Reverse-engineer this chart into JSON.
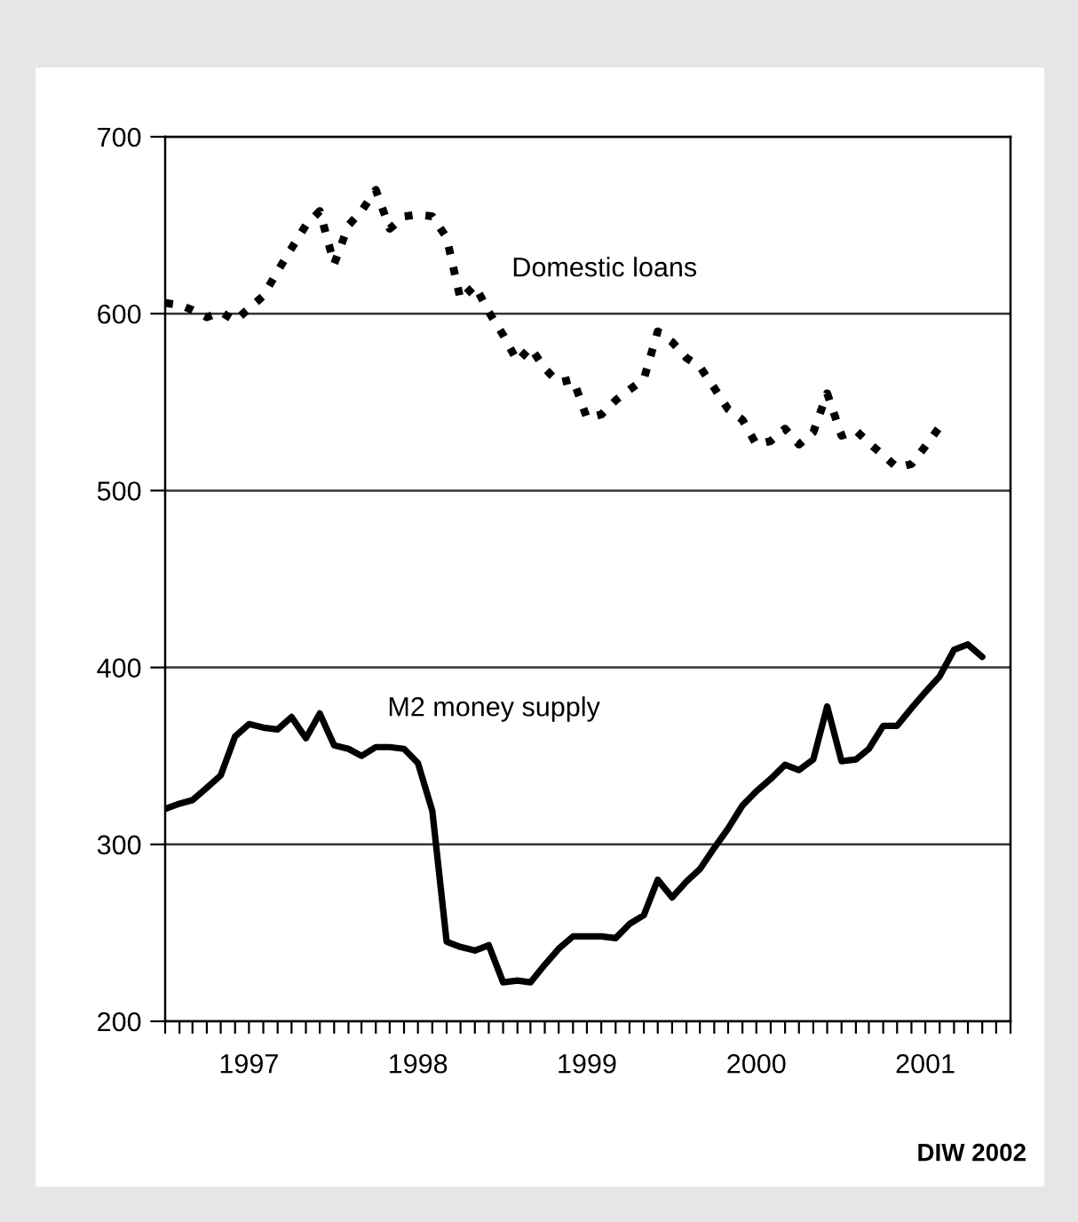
{
  "chart_data": {
    "type": "line",
    "x": [
      "1997-01",
      "1997-02",
      "1997-03",
      "1997-04",
      "1997-05",
      "1997-06",
      "1997-07",
      "1997-08",
      "1997-09",
      "1997-10",
      "1997-11",
      "1997-12",
      "1998-01",
      "1998-02",
      "1998-03",
      "1998-04",
      "1998-05",
      "1998-06",
      "1998-07",
      "1998-08",
      "1998-09",
      "1998-10",
      "1998-11",
      "1998-12",
      "1999-01",
      "1999-02",
      "1999-03",
      "1999-04",
      "1999-05",
      "1999-06",
      "1999-07",
      "1999-08",
      "1999-09",
      "1999-10",
      "1999-11",
      "1999-12",
      "2000-01",
      "2000-02",
      "2000-03",
      "2000-04",
      "2000-05",
      "2000-06",
      "2000-07",
      "2000-08",
      "2000-09",
      "2000-10",
      "2000-11",
      "2000-12",
      "2001-01",
      "2001-02",
      "2001-03",
      "2001-04",
      "2001-05",
      "2001-06",
      "2001-07",
      "2001-08",
      "2001-09",
      "2001-10",
      "2001-11"
    ],
    "series": [
      {
        "name": "Domestic loans",
        "color": "#000000",
        "line_style": "dotted",
        "values": [
          606,
          605,
          602,
          598,
          601,
          596,
          603,
          610,
          624,
          637,
          650,
          658,
          628,
          650,
          658,
          670,
          648,
          655,
          656,
          655,
          643,
          608,
          616,
          601,
          588,
          573,
          581,
          569,
          561,
          563,
          541,
          543,
          551,
          557,
          563,
          590,
          584,
          575,
          570,
          558,
          546,
          540,
          526,
          528,
          535,
          526,
          533,
          555,
          531,
          534,
          527,
          520,
          513,
          515,
          525,
          536,
          null,
          null,
          null
        ]
      },
      {
        "name": "M2 money supply",
        "color": "#000000",
        "line_style": "solid",
        "values": [
          320,
          323,
          325,
          332,
          339,
          361,
          368,
          366,
          365,
          372,
          360,
          374,
          356,
          354,
          350,
          355,
          355,
          354,
          346,
          319,
          245,
          242,
          240,
          243,
          222,
          223,
          222,
          232,
          241,
          248,
          248,
          248,
          247,
          255,
          260,
          280,
          270,
          279,
          286,
          298,
          309,
          322,
          330,
          337,
          345,
          342,
          348,
          378,
          347,
          348,
          354,
          367,
          367,
          377,
          386,
          395,
          410,
          413,
          406
        ]
      }
    ],
    "xlim": [
      "1997-01",
      "2002-01"
    ],
    "xticks": [
      {
        "value": "1997-01",
        "label": null
      },
      {
        "value": "1997-02",
        "label": null
      },
      {
        "value": "1997-03",
        "label": null
      },
      {
        "value": "1997-04",
        "label": null
      },
      {
        "value": "1997-05",
        "label": null
      },
      {
        "value": "1997-06",
        "label": null
      },
      {
        "value": "1997-07",
        "label": "1997"
      },
      {
        "value": "1997-08",
        "label": null
      },
      {
        "value": "1997-09",
        "label": null
      },
      {
        "value": "1997-10",
        "label": null
      },
      {
        "value": "1997-11",
        "label": null
      },
      {
        "value": "1997-12",
        "label": null
      },
      {
        "value": "1998-01",
        "label": null
      },
      {
        "value": "1998-02",
        "label": null
      },
      {
        "value": "1998-03",
        "label": null
      },
      {
        "value": "1998-04",
        "label": null
      },
      {
        "value": "1998-05",
        "label": null
      },
      {
        "value": "1998-06",
        "label": null
      },
      {
        "value": "1998-07",
        "label": "1998"
      },
      {
        "value": "1998-08",
        "label": null
      },
      {
        "value": "1998-09",
        "label": null
      },
      {
        "value": "1998-10",
        "label": null
      },
      {
        "value": "1998-11",
        "label": null
      },
      {
        "value": "1998-12",
        "label": null
      },
      {
        "value": "1999-01",
        "label": null
      },
      {
        "value": "1999-02",
        "label": null
      },
      {
        "value": "1999-03",
        "label": null
      },
      {
        "value": "1999-04",
        "label": null
      },
      {
        "value": "1999-05",
        "label": null
      },
      {
        "value": "1999-06",
        "label": null
      },
      {
        "value": "1999-07",
        "label": "1999"
      },
      {
        "value": "1999-08",
        "label": null
      },
      {
        "value": "1999-09",
        "label": null
      },
      {
        "value": "1999-10",
        "label": null
      },
      {
        "value": "1999-11",
        "label": null
      },
      {
        "value": "1999-12",
        "label": null
      },
      {
        "value": "2000-01",
        "label": null
      },
      {
        "value": "2000-02",
        "label": null
      },
      {
        "value": "2000-03",
        "label": null
      },
      {
        "value": "2000-04",
        "label": null
      },
      {
        "value": "2000-05",
        "label": null
      },
      {
        "value": "2000-06",
        "label": null
      },
      {
        "value": "2000-07",
        "label": "2000"
      },
      {
        "value": "2000-08",
        "label": null
      },
      {
        "value": "2000-09",
        "label": null
      },
      {
        "value": "2000-10",
        "label": null
      },
      {
        "value": "2000-11",
        "label": null
      },
      {
        "value": "2000-12",
        "label": null
      },
      {
        "value": "2001-01",
        "label": null
      },
      {
        "value": "2001-02",
        "label": null
      },
      {
        "value": "2001-03",
        "label": null
      },
      {
        "value": "2001-04",
        "label": null
      },
      {
        "value": "2001-05",
        "label": null
      },
      {
        "value": "2001-06",
        "label": null
      },
      {
        "value": "2001-07",
        "label": "2001"
      },
      {
        "value": "2001-08",
        "label": null
      },
      {
        "value": "2001-09",
        "label": null
      },
      {
        "value": "2001-10",
        "label": null
      },
      {
        "value": "2001-11",
        "label": null
      },
      {
        "value": "2001-12",
        "label": null
      },
      {
        "value": "2002-01",
        "label": null
      }
    ],
    "ylim": [
      200,
      700
    ],
    "yticks": [
      200,
      300,
      400,
      500,
      600,
      700
    ],
    "grid": "y",
    "legend": false,
    "marker": "none",
    "annotations": [
      "DIW 2002"
    ]
  }
}
